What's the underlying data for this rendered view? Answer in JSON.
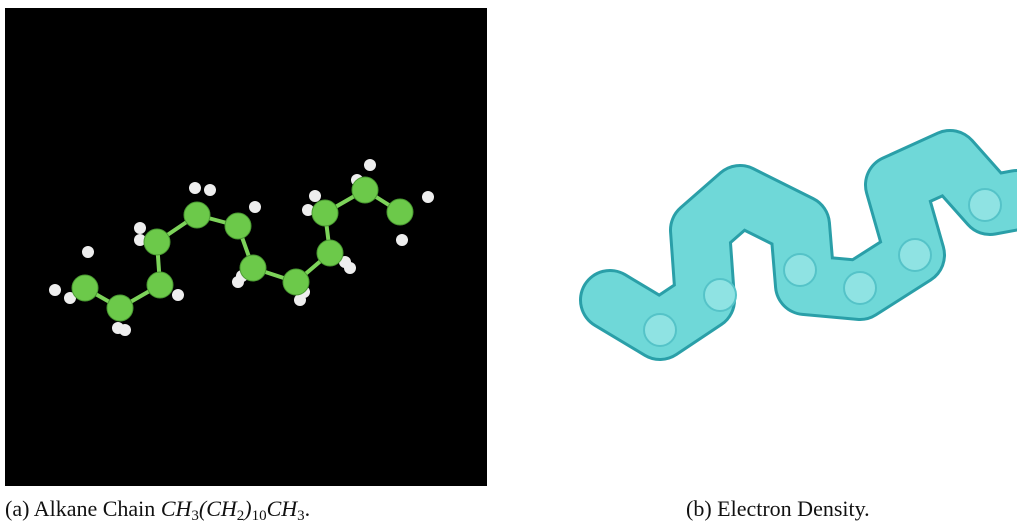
{
  "figures": [
    {
      "caption": {
        "label": "(a)",
        "text": "Alkane Chain",
        "formula": [
          "CH",
          "3",
          "(CH",
          "2",
          ")",
          "10",
          "CH",
          "3"
        ],
        "end": "."
      }
    },
    {
      "caption": {
        "label": "(b)",
        "text": "Electron Density."
      }
    }
  ]
}
